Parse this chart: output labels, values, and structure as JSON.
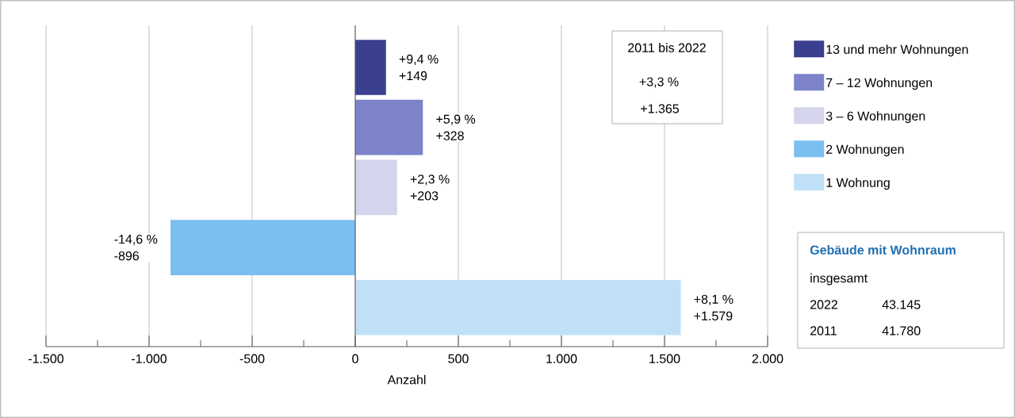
{
  "chart_data": {
    "type": "bar",
    "orientation": "horizontal",
    "xlabel": "Anzahl",
    "categories": [
      null,
      null,
      null,
      null,
      null
    ],
    "series": [
      {
        "name": "13 und mehr Wohnungen",
        "color": "#3b3f8f",
        "values": [
          149,
          null,
          null,
          null,
          null
        ],
        "value_labels": [
          "+149",
          null,
          null,
          null,
          null
        ]
      },
      {
        "name": "7 – 12 Wohnungen",
        "color": "#7d83c9",
        "values": [
          null,
          328,
          null,
          null,
          null
        ],
        "value_labels": [
          null,
          "+328",
          null,
          null,
          null
        ]
      },
      {
        "name": "3 – 6 Wohnungen",
        "color": "#d4d5ec",
        "values": [
          null,
          null,
          203,
          null,
          null
        ],
        "value_labels": [
          null,
          null,
          "+203",
          null,
          null
        ]
      },
      {
        "name": "2 Wohnungen",
        "color": "#7bbff0",
        "values": [
          null,
          null,
          null,
          -896,
          null
        ],
        "value_labels": [
          null,
          null,
          null,
          "-896",
          null
        ]
      },
      {
        "name": "1 Wohnung",
        "color": "#bfe0f7",
        "values": [
          null,
          null,
          null,
          null,
          1579
        ],
        "value_labels": [
          null,
          null,
          null,
          null,
          "+1.579"
        ]
      }
    ],
    "xlim": [
      -1500,
      2000
    ],
    "xticks": [
      {
        "value": -1500,
        "label": "-1.500"
      },
      {
        "value": -1000,
        "label": "-1.000"
      },
      -500,
      0,
      500,
      {
        "value": 1000,
        "label": "1.000"
      },
      {
        "value": 1500,
        "label": "1.500"
      },
      {
        "value": 2000,
        "label": "2.000"
      }
    ],
    "grid": "x",
    "legend": "right",
    "annotations": [
      "+9,4 %",
      "+5,9 %",
      "+2,3 %",
      "-14,6 %",
      "+8,1 %",
      "2011 bis 2022",
      "+3,3 %",
      "+1.365",
      "Gebäude mit Wohnraum",
      "insgesamt",
      "2022",
      "43.145",
      "2011",
      "41.780"
    ]
  }
}
